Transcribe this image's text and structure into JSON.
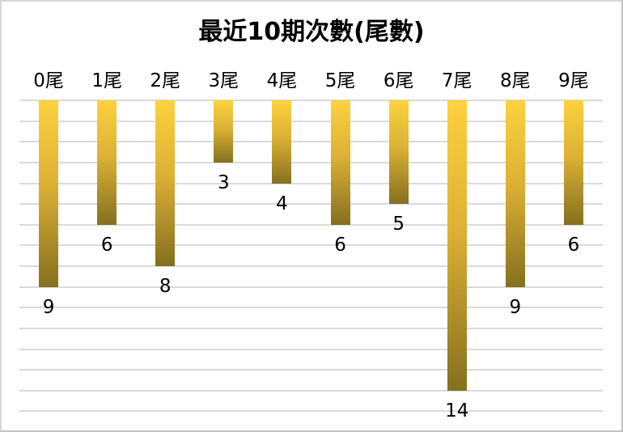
{
  "chart_data": {
    "type": "bar",
    "title": "最近10期次數(尾數)",
    "categories": [
      "0尾",
      "1尾",
      "2尾",
      "3尾",
      "4尾",
      "5尾",
      "6尾",
      "7尾",
      "8尾",
      "9尾"
    ],
    "values": [
      9,
      6,
      8,
      3,
      4,
      6,
      5,
      14,
      9,
      6
    ],
    "xlabel": "",
    "ylabel": "",
    "ylim": [
      0,
      16
    ],
    "y_axis_inverted": true,
    "y_major_unit": 1,
    "grid": "horizontal gridlines, no axis tick labels",
    "legend": "none",
    "data_labels": "value shown below each bar end",
    "colors": {
      "bar_gradient_top": "#FCD23E",
      "bar_gradient_mid": "#DCB135",
      "bar_gradient_bottom": "#85701F",
      "gridline": "#DADADA",
      "text": "#000000",
      "background": "#FFFFFF",
      "frame_border": "#C9C9C9"
    }
  }
}
